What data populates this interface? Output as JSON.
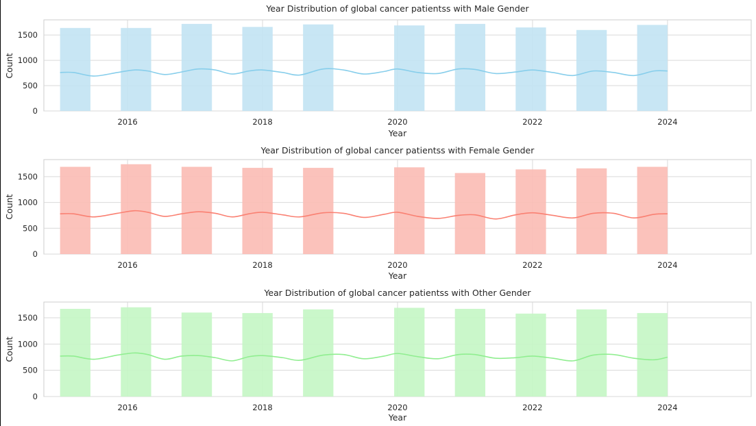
{
  "colors": {
    "male_bar": "#c3e4f3",
    "male_line": "#87ceeb",
    "female_bar": "#fbbdb5",
    "female_line": "#fa8072",
    "other_bar": "#c5f6c5",
    "other_line": "#90ee90",
    "grid": "#d9d9d9",
    "frame": "#cccccc"
  },
  "chart_data": [
    {
      "type": "bar",
      "subtype": "histogram_with_kde",
      "title": "Year Distribution of global cancer patientss with Male Gender",
      "xlabel": "Year",
      "ylabel": "Count",
      "xlim": [
        2014.76,
        2025.24
      ],
      "ylim": [
        0,
        1800
      ],
      "xticks": [
        "2016",
        "2018",
        "2020",
        "2022",
        "2024"
      ],
      "yticks": [
        "0",
        "500",
        "1000",
        "1500"
      ],
      "grid": true,
      "bins": [
        {
          "x0": 2015.0,
          "x1": 2015.45,
          "value": 1640
        },
        {
          "x0": 2015.9,
          "x1": 2016.35,
          "value": 1640
        },
        {
          "x0": 2016.8,
          "x1": 2017.25,
          "value": 1720
        },
        {
          "x0": 2017.7,
          "x1": 2018.15,
          "value": 1660
        },
        {
          "x0": 2018.6,
          "x1": 2019.05,
          "value": 1710
        },
        {
          "x0": 2019.5,
          "x1": 2019.95,
          "value": 0
        },
        {
          "x0": 2019.95,
          "x1": 2020.4,
          "value": 1690
        },
        {
          "x0": 2020.85,
          "x1": 2021.3,
          "value": 1720
        },
        {
          "x0": 2021.75,
          "x1": 2022.2,
          "value": 1650
        },
        {
          "x0": 2022.65,
          "x1": 2023.1,
          "value": 1600
        },
        {
          "x0": 2023.55,
          "x1": 2024.0,
          "value": 1700
        }
      ],
      "kde": {
        "x": [
          2015.0,
          2015.2,
          2015.5,
          2015.85,
          2016.1,
          2016.3,
          2016.55,
          2016.8,
          2017.05,
          2017.3,
          2017.55,
          2017.8,
          2018.0,
          2018.3,
          2018.55,
          2018.9,
          2019.2,
          2019.5,
          2019.8,
          2020.0,
          2020.3,
          2020.6,
          2020.9,
          2021.15,
          2021.45,
          2021.75,
          2022.0,
          2022.3,
          2022.6,
          2022.9,
          2023.2,
          2023.5,
          2023.8,
          2024.0
        ],
        "y": [
          760,
          760,
          690,
          760,
          810,
          790,
          720,
          770,
          830,
          810,
          730,
          790,
          810,
          760,
          710,
          830,
          810,
          730,
          780,
          830,
          760,
          740,
          830,
          820,
          740,
          770,
          810,
          760,
          700,
          790,
          760,
          700,
          790,
          790
        ]
      }
    },
    {
      "type": "bar",
      "subtype": "histogram_with_kde",
      "title": "Year Distribution of global cancer patientss with Female Gender",
      "xlabel": "Year",
      "ylabel": "Count",
      "xlim": [
        2014.76,
        2025.24
      ],
      "ylim": [
        0,
        1830
      ],
      "xticks": [
        "2016",
        "2018",
        "2020",
        "2022",
        "2024"
      ],
      "yticks": [
        "0",
        "500",
        "1000",
        "1500"
      ],
      "grid": true,
      "bins": [
        {
          "x0": 2015.0,
          "x1": 2015.45,
          "value": 1690
        },
        {
          "x0": 2015.9,
          "x1": 2016.35,
          "value": 1740
        },
        {
          "x0": 2016.8,
          "x1": 2017.25,
          "value": 1690
        },
        {
          "x0": 2017.7,
          "x1": 2018.15,
          "value": 1670
        },
        {
          "x0": 2018.6,
          "x1": 2019.05,
          "value": 1670
        },
        {
          "x0": 2019.5,
          "x1": 2019.95,
          "value": 0
        },
        {
          "x0": 2019.95,
          "x1": 2020.4,
          "value": 1680
        },
        {
          "x0": 2020.85,
          "x1": 2021.3,
          "value": 1570
        },
        {
          "x0": 2021.75,
          "x1": 2022.2,
          "value": 1640
        },
        {
          "x0": 2022.65,
          "x1": 2023.1,
          "value": 1660
        },
        {
          "x0": 2023.55,
          "x1": 2024.0,
          "value": 1690
        }
      ],
      "kde": {
        "x": [
          2015.0,
          2015.2,
          2015.5,
          2015.85,
          2016.1,
          2016.3,
          2016.55,
          2016.8,
          2017.05,
          2017.3,
          2017.55,
          2017.8,
          2018.0,
          2018.3,
          2018.55,
          2018.9,
          2019.2,
          2019.5,
          2019.8,
          2020.0,
          2020.3,
          2020.6,
          2020.9,
          2021.15,
          2021.45,
          2021.75,
          2022.0,
          2022.3,
          2022.6,
          2022.9,
          2023.2,
          2023.5,
          2023.8,
          2024.0
        ],
        "y": [
          780,
          780,
          720,
          790,
          840,
          810,
          730,
          780,
          820,
          790,
          720,
          780,
          810,
          760,
          720,
          800,
          790,
          710,
          770,
          810,
          730,
          690,
          750,
          760,
          680,
          760,
          800,
          750,
          700,
          790,
          790,
          700,
          770,
          780
        ]
      }
    },
    {
      "type": "bar",
      "subtype": "histogram_with_kde",
      "title": "Year Distribution of global cancer patientss with Other Gender",
      "xlabel": "Year",
      "ylabel": "Count",
      "xlim": [
        2014.76,
        2025.24
      ],
      "ylim": [
        0,
        1800
      ],
      "xticks": [
        "2016",
        "2018",
        "2020",
        "2022",
        "2024"
      ],
      "yticks": [
        "0",
        "500",
        "1000",
        "1500"
      ],
      "grid": true,
      "bins": [
        {
          "x0": 2015.0,
          "x1": 2015.45,
          "value": 1670
        },
        {
          "x0": 2015.9,
          "x1": 2016.35,
          "value": 1700
        },
        {
          "x0": 2016.8,
          "x1": 2017.25,
          "value": 1600
        },
        {
          "x0": 2017.7,
          "x1": 2018.15,
          "value": 1590
        },
        {
          "x0": 2018.6,
          "x1": 2019.05,
          "value": 1660
        },
        {
          "x0": 2019.5,
          "x1": 2019.95,
          "value": 0
        },
        {
          "x0": 2019.95,
          "x1": 2020.4,
          "value": 1690
        },
        {
          "x0": 2020.85,
          "x1": 2021.3,
          "value": 1670
        },
        {
          "x0": 2021.75,
          "x1": 2022.2,
          "value": 1580
        },
        {
          "x0": 2022.65,
          "x1": 2023.1,
          "value": 1660
        },
        {
          "x0": 2023.55,
          "x1": 2024.0,
          "value": 1590
        }
      ],
      "kde": {
        "x": [
          2015.0,
          2015.2,
          2015.5,
          2015.85,
          2016.1,
          2016.3,
          2016.55,
          2016.8,
          2017.05,
          2017.3,
          2017.55,
          2017.8,
          2018.0,
          2018.3,
          2018.55,
          2018.9,
          2019.2,
          2019.5,
          2019.8,
          2020.0,
          2020.3,
          2020.6,
          2020.9,
          2021.15,
          2021.45,
          2021.75,
          2022.0,
          2022.3,
          2022.6,
          2022.9,
          2023.2,
          2023.5,
          2023.8,
          2024.0
        ],
        "y": [
          770,
          770,
          710,
          790,
          830,
          800,
          710,
          770,
          780,
          740,
          680,
          760,
          780,
          740,
          690,
          790,
          800,
          720,
          770,
          820,
          760,
          720,
          800,
          800,
          730,
          740,
          770,
          730,
          680,
          790,
          800,
          730,
          700,
          750
        ]
      }
    }
  ]
}
